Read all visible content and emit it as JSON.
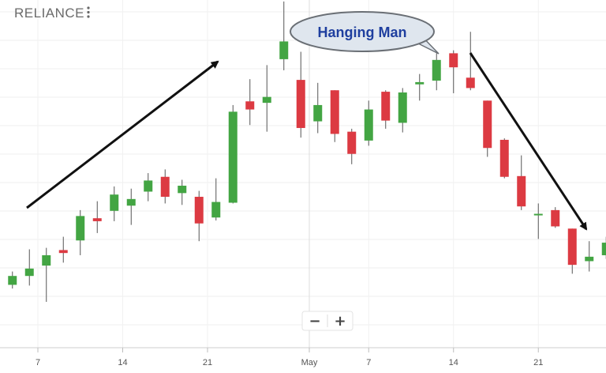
{
  "header": {
    "symbol": "RELIANCE",
    "menu_icon": "vertical-dots-icon"
  },
  "annotation": {
    "label": "Hanging Man"
  },
  "zoom": {
    "out_label": "−",
    "in_label": "+"
  },
  "colors": {
    "up": "#43a543",
    "down": "#dc3a42",
    "arrow": "#111111",
    "callout_fill": "#dfe6ee",
    "callout_text": "#1f3f9f"
  },
  "chart_data": {
    "type": "candlestick",
    "ylim": [
      0,
      470
    ],
    "xlim": [
      0,
      38
    ],
    "x_ticks": [
      {
        "x": 1.5,
        "label": "7"
      },
      {
        "x": 6.5,
        "label": "14"
      },
      {
        "x": 11.5,
        "label": "21"
      },
      {
        "x": 17.5,
        "label": "May"
      },
      {
        "x": 21.0,
        "label": "7"
      },
      {
        "x": 26.0,
        "label": "14"
      },
      {
        "x": 31.0,
        "label": "21"
      }
    ],
    "candles": [
      {
        "x": 0,
        "open": 85,
        "close": 97,
        "high": 103,
        "low": 80,
        "dir": "up"
      },
      {
        "x": 1,
        "open": 97,
        "close": 107,
        "high": 133,
        "low": 84,
        "dir": "up"
      },
      {
        "x": 2,
        "open": 111,
        "close": 125,
        "high": 135,
        "low": 62,
        "dir": "up"
      },
      {
        "x": 3,
        "open": 132,
        "close": 128,
        "high": 150,
        "low": 115,
        "dir": "down"
      },
      {
        "x": 4,
        "open": 145,
        "close": 178,
        "high": 186,
        "low": 125,
        "dir": "up"
      },
      {
        "x": 5,
        "open": 175,
        "close": 171,
        "high": 198,
        "low": 155,
        "dir": "down"
      },
      {
        "x": 6,
        "open": 185,
        "close": 207,
        "high": 218,
        "low": 171,
        "dir": "up"
      },
      {
        "x": 7,
        "open": 192,
        "close": 201,
        "high": 215,
        "low": 166,
        "dir": "up"
      },
      {
        "x": 8,
        "open": 211,
        "close": 226,
        "high": 236,
        "low": 198,
        "dir": "up"
      },
      {
        "x": 9,
        "open": 231,
        "close": 204,
        "high": 241,
        "low": 195,
        "dir": "down"
      },
      {
        "x": 10,
        "open": 209,
        "close": 219,
        "high": 227,
        "low": 193,
        "dir": "up"
      },
      {
        "x": 11,
        "open": 204,
        "close": 168,
        "high": 212,
        "low": 144,
        "dir": "down"
      },
      {
        "x": 12,
        "open": 176,
        "close": 197,
        "high": 229,
        "low": 172,
        "dir": "up"
      },
      {
        "x": 13,
        "open": 196,
        "close": 319,
        "high": 328,
        "low": 195,
        "dir": "up"
      },
      {
        "x": 14,
        "open": 333,
        "close": 322,
        "high": 363,
        "low": 301,
        "dir": "down"
      },
      {
        "x": 15,
        "open": 331,
        "close": 339,
        "high": 382,
        "low": 292,
        "dir": "up"
      },
      {
        "x": 16,
        "open": 390,
        "close": 414,
        "high": 468,
        "low": 375,
        "dir": "up"
      },
      {
        "x": 17,
        "open": 362,
        "close": 297,
        "high": 400,
        "low": 284,
        "dir": "down"
      },
      {
        "x": 18,
        "open": 306,
        "close": 328,
        "high": 358,
        "low": 290,
        "dir": "up"
      },
      {
        "x": 19,
        "open": 348,
        "close": 289,
        "high": 348,
        "low": 278,
        "dir": "down"
      },
      {
        "x": 20,
        "open": 292,
        "close": 262,
        "high": 296,
        "low": 248,
        "dir": "down"
      },
      {
        "x": 21,
        "open": 280,
        "close": 322,
        "high": 334,
        "low": 273,
        "dir": "up"
      },
      {
        "x": 22,
        "open": 346,
        "close": 307,
        "high": 348,
        "low": 296,
        "dir": "down"
      },
      {
        "x": 23,
        "open": 304,
        "close": 345,
        "high": 351,
        "low": 291,
        "dir": "up"
      },
      {
        "x": 24,
        "open": 356,
        "close": 359,
        "high": 370,
        "low": 334,
        "dir": "up"
      },
      {
        "x": 25,
        "open": 361,
        "close": 389,
        "high": 398,
        "low": 348,
        "dir": "up"
      },
      {
        "x": 26,
        "open": 398,
        "close": 379,
        "high": 402,
        "low": 344,
        "dir": "down"
      },
      {
        "x": 27,
        "open": 365,
        "close": 351,
        "high": 427,
        "low": 348,
        "dir": "down"
      },
      {
        "x": 28,
        "open": 334,
        "close": 270,
        "high": 334,
        "low": 258,
        "dir": "down"
      },
      {
        "x": 29,
        "open": 281,
        "close": 231,
        "high": 283,
        "low": 229,
        "dir": "down"
      },
      {
        "x": 30,
        "open": 232,
        "close": 191,
        "high": 260,
        "low": 186,
        "dir": "down"
      },
      {
        "x": 31,
        "open": 179,
        "close": 181,
        "high": 195,
        "low": 147,
        "dir": "up"
      },
      {
        "x": 32,
        "open": 186,
        "close": 164,
        "high": 190,
        "low": 162,
        "dir": "down"
      },
      {
        "x": 33,
        "open": 161,
        "close": 112,
        "high": 161,
        "low": 100,
        "dir": "down"
      },
      {
        "x": 34,
        "open": 117,
        "close": 123,
        "high": 144,
        "low": 103,
        "dir": "up"
      },
      {
        "x": 35,
        "open": 125,
        "close": 142,
        "high": 150,
        "low": 120,
        "dir": "up"
      }
    ]
  }
}
